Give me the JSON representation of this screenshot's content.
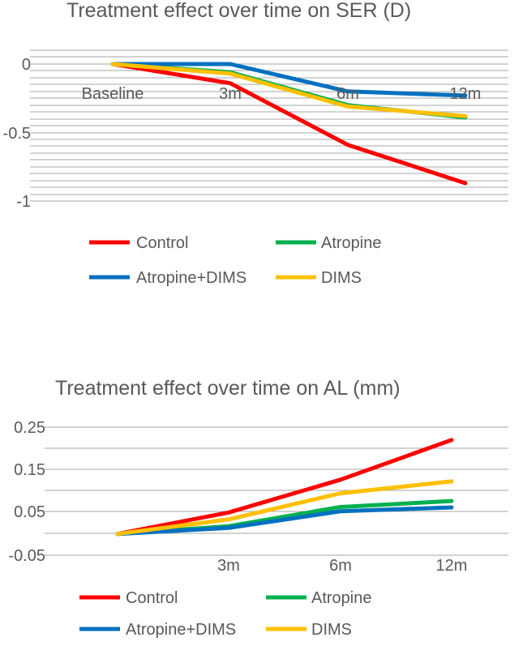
{
  "chart_data": [
    {
      "type": "line",
      "title": "Treatment effect over time on SER (D)",
      "categories": [
        "Baseline",
        "3m",
        "6m",
        "12m"
      ],
      "xlabel": "",
      "ylabel": "",
      "ylim": [
        -1,
        0
      ],
      "y_ticks": [
        "0",
        "-0.5",
        "-1"
      ],
      "grid": true,
      "legend_position": "bottom",
      "series": [
        {
          "name": "Control",
          "color": "#ff0000",
          "values": [
            0,
            -0.14,
            -0.59,
            -0.87
          ]
        },
        {
          "name": "Atropine",
          "color": "#00b050",
          "values": [
            0,
            -0.06,
            -0.3,
            -0.39
          ]
        },
        {
          "name": "Atropine+DIMS",
          "color": "#0070c0",
          "values": [
            0,
            0,
            -0.2,
            -0.23
          ]
        },
        {
          "name": "DIMS",
          "color": "#ffc000",
          "values": [
            0,
            -0.07,
            -0.31,
            -0.38
          ]
        }
      ]
    },
    {
      "type": "line",
      "title": "Treatment effect over time on AL (mm)",
      "categories": [
        "",
        "3m",
        "6m",
        "12m"
      ],
      "xlabel": "",
      "ylabel": "",
      "ylim": [
        -0.05,
        0.25
      ],
      "y_ticks": [
        "0.25",
        "0.15",
        "0.05",
        "-0.05"
      ],
      "grid": true,
      "legend_position": "bottom",
      "series": [
        {
          "name": "Control",
          "color": "#ff0000",
          "values": [
            0,
            0.05,
            0.127,
            0.22
          ]
        },
        {
          "name": "Atropine",
          "color": "#00b050",
          "values": [
            0,
            0.018,
            0.063,
            0.077
          ]
        },
        {
          "name": "Atropine+DIMS",
          "color": "#0070c0",
          "values": [
            0,
            0.014,
            0.053,
            0.062
          ]
        },
        {
          "name": "DIMS",
          "color": "#ffc000",
          "values": [
            0,
            0.034,
            0.095,
            0.123
          ]
        }
      ]
    }
  ]
}
